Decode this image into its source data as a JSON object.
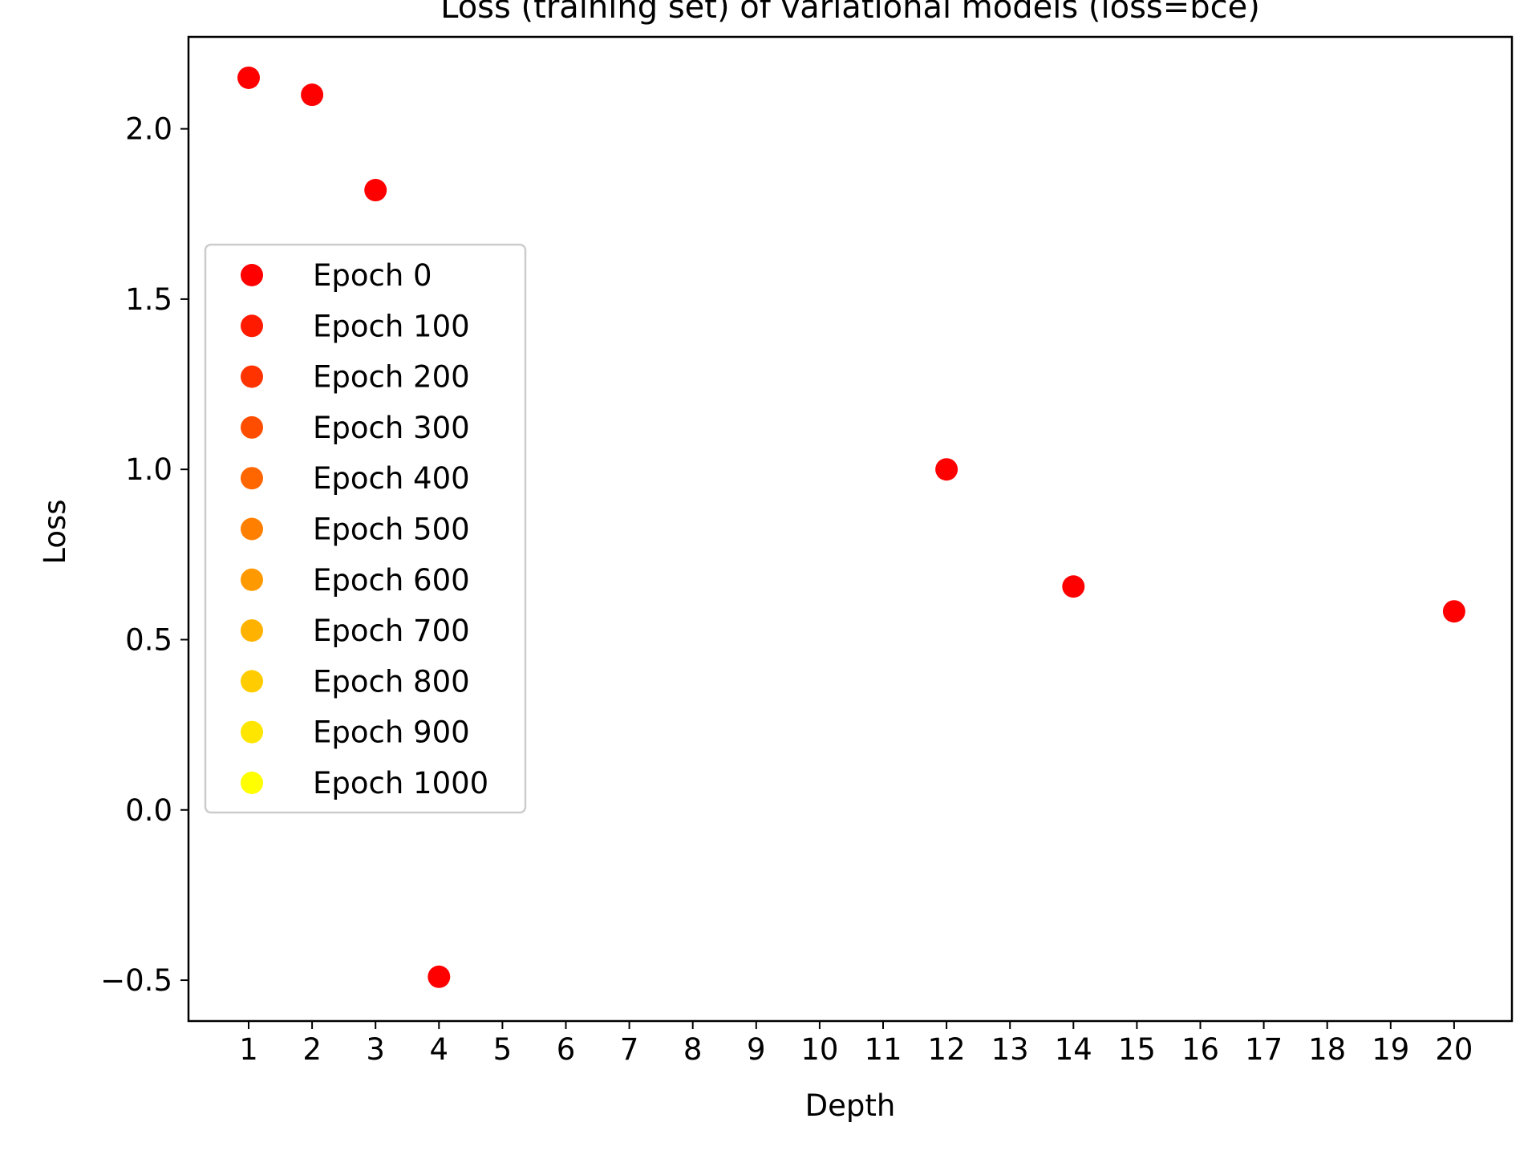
{
  "chart_data": {
    "type": "scatter",
    "title": "Loss (training set) of variational models (loss=bce)",
    "xlabel": "Depth",
    "ylabel": "Loss",
    "x_ticks": [
      "1",
      "2",
      "3",
      "4",
      "5",
      "6",
      "7",
      "8",
      "9",
      "10",
      "11",
      "12",
      "13",
      "14",
      "15",
      "16",
      "17",
      "18",
      "19",
      "20"
    ],
    "y_ticks": [
      -0.5,
      0.0,
      0.5,
      1.0,
      1.5,
      2.0
    ],
    "y_tick_labels": [
      "−0.5",
      "0.0",
      "0.5",
      "1.0",
      "1.5",
      "2.0"
    ],
    "ylim": [
      -0.62,
      2.27
    ],
    "grid": false,
    "legend_position": "center-left",
    "series": [
      {
        "name": "Epoch 0",
        "color": "#ff0000",
        "points": [
          {
            "x": "1",
            "y": 2.15
          },
          {
            "x": "2",
            "y": 2.1
          },
          {
            "x": "3",
            "y": 1.82
          },
          {
            "x": "4",
            "y": -0.49
          },
          {
            "x": "12",
            "y": 1.0
          },
          {
            "x": "14",
            "y": 0.656
          },
          {
            "x": "20",
            "y": 0.583
          }
        ]
      },
      {
        "name": "Epoch 100",
        "color": "#ff1a00",
        "points": []
      },
      {
        "name": "Epoch 200",
        "color": "#ff3300",
        "points": []
      },
      {
        "name": "Epoch 300",
        "color": "#ff4d00",
        "points": []
      },
      {
        "name": "Epoch 400",
        "color": "#ff6600",
        "points": []
      },
      {
        "name": "Epoch 500",
        "color": "#ff8000",
        "points": []
      },
      {
        "name": "Epoch 600",
        "color": "#ff9900",
        "points": []
      },
      {
        "name": "Epoch 700",
        "color": "#ffb300",
        "points": []
      },
      {
        "name": "Epoch 800",
        "color": "#ffcc00",
        "points": []
      },
      {
        "name": "Epoch 900",
        "color": "#ffe600",
        "points": []
      },
      {
        "name": "Epoch 1000",
        "color": "#ffff00",
        "points": []
      }
    ]
  }
}
